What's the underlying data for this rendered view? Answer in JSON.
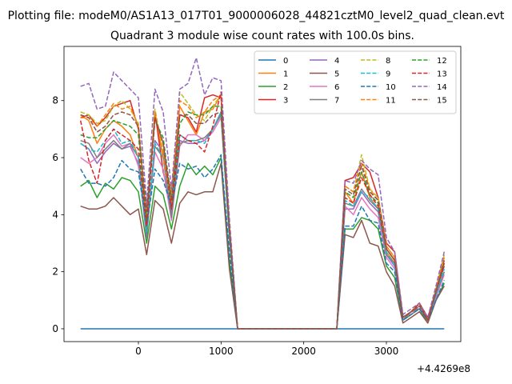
{
  "chart_data": {
    "type": "line",
    "title_line1": "Plotting file: modeM0/AS1A13_017T01_9000006028_44821cztM0_level2_quad_clean.evt",
    "title_line2": "Quadrant 3 module wise count rates with 100.0s bins.",
    "xlabel": "",
    "ylabel": "",
    "x_offset_label": "+4.4269e8",
    "xlim": [
      -900,
      3900
    ],
    "ylim": [
      -0.45,
      9.9
    ],
    "x_ticks": [
      0,
      1000,
      2000,
      3000
    ],
    "x_tick_labels": [
      "0",
      "1000",
      "2000",
      "3000"
    ],
    "y_ticks": [
      0,
      2,
      4,
      6,
      8
    ],
    "y_tick_labels": [
      "0",
      "2",
      "4",
      "6",
      "8"
    ],
    "grid": false,
    "legend": {
      "placement": "top-right",
      "columns": 4
    },
    "x": [
      -700,
      -600,
      -500,
      -400,
      -300,
      -200,
      -100,
      0,
      100,
      200,
      300,
      400,
      500,
      600,
      700,
      800,
      900,
      1000,
      1100,
      1200,
      1300,
      1400,
      1500,
      1600,
      1700,
      1800,
      1900,
      2000,
      2100,
      2200,
      2300,
      2400,
      2500,
      2600,
      2700,
      2800,
      2900,
      3000,
      3100,
      3200,
      3300,
      3400,
      3500,
      3600,
      3700
    ],
    "series": [
      {
        "name": "0",
        "color": "#1f77b4",
        "dash": "solid",
        "values": [
          0,
          0,
          0,
          0,
          0,
          0,
          0,
          0,
          0,
          0,
          0,
          0,
          0,
          0,
          0,
          0,
          0,
          0,
          0,
          0,
          0,
          0,
          0,
          0,
          0,
          0,
          0,
          0,
          0,
          0,
          0,
          0,
          0,
          0,
          0,
          0,
          0,
          0,
          0,
          0,
          0,
          0,
          0,
          0,
          0
        ]
      },
      {
        "name": "1",
        "color": "#ff7f0e",
        "dash": "solid",
        "values": [
          7.5,
          7.3,
          6.5,
          7.0,
          7.3,
          7.1,
          6.8,
          6.0,
          4.0,
          7.5,
          6.0,
          4.8,
          7.8,
          7.3,
          6.8,
          7.6,
          7.7,
          8.2,
          3.7,
          0,
          0,
          0,
          0,
          0,
          0,
          0,
          0,
          0,
          0,
          0,
          0,
          0,
          4.8,
          4.4,
          5.5,
          4.6,
          4.2,
          2.7,
          2.3,
          0.3,
          0.6,
          0.8,
          0.3,
          1.4,
          2.4
        ]
      },
      {
        "name": "2",
        "color": "#2ca02c",
        "dash": "solid",
        "values": [
          5.0,
          5.2,
          4.6,
          5.1,
          4.9,
          5.3,
          5.2,
          4.8,
          3.0,
          5.0,
          4.7,
          3.5,
          5.0,
          5.8,
          5.4,
          5.7,
          5.4,
          6.0,
          2.4,
          0,
          0,
          0,
          0,
          0,
          0,
          0,
          0,
          0,
          0,
          0,
          0,
          0,
          3.5,
          3.5,
          3.9,
          3.8,
          3.5,
          2.2,
          1.8,
          0.3,
          0.5,
          0.7,
          0.2,
          1.0,
          1.6
        ]
      },
      {
        "name": "3",
        "color": "#d62728",
        "dash": "solid",
        "values": [
          7.4,
          7.5,
          7.1,
          7.4,
          7.8,
          7.9,
          8.0,
          7.0,
          3.8,
          7.6,
          5.5,
          4.3,
          7.5,
          7.4,
          6.9,
          8.1,
          8.2,
          8.1,
          3.5,
          0,
          0,
          0,
          0,
          0,
          0,
          0,
          0,
          0,
          0,
          0,
          0,
          0,
          5.2,
          5.3,
          5.8,
          5.5,
          4.6,
          3.0,
          2.7,
          0.4,
          0.6,
          0.9,
          0.4,
          1.3,
          2.2
        ]
      },
      {
        "name": "4",
        "color": "#9467bd",
        "dash": "solid",
        "values": [
          6.5,
          6.3,
          5.8,
          6.2,
          6.5,
          6.3,
          6.4,
          5.8,
          3.2,
          6.6,
          6.2,
          4.0,
          6.6,
          6.5,
          6.5,
          6.6,
          7.0,
          7.6,
          3.2,
          0,
          0,
          0,
          0,
          0,
          0,
          0,
          0,
          0,
          0,
          0,
          0,
          0,
          4.2,
          4.2,
          4.8,
          4.4,
          4.1,
          2.6,
          2.2,
          0.3,
          0.6,
          0.7,
          0.3,
          1.2,
          2.0
        ]
      },
      {
        "name": "5",
        "color": "#8c564b",
        "dash": "solid",
        "values": [
          4.3,
          4.2,
          4.2,
          4.3,
          4.6,
          4.3,
          4.0,
          4.2,
          2.6,
          4.5,
          4.2,
          3.0,
          4.4,
          4.8,
          4.7,
          4.8,
          4.8,
          5.8,
          2.1,
          0,
          0,
          0,
          0,
          0,
          0,
          0,
          0,
          0,
          0,
          0,
          0,
          0,
          3.3,
          3.2,
          3.8,
          3.0,
          2.9,
          2.0,
          1.5,
          0.2,
          0.4,
          0.6,
          0.2,
          1.0,
          1.5
        ]
      },
      {
        "name": "6",
        "color": "#e377c2",
        "dash": "solid",
        "values": [
          6.0,
          5.8,
          6.0,
          6.5,
          6.8,
          6.4,
          6.5,
          5.7,
          3.5,
          6.2,
          5.6,
          3.8,
          6.4,
          6.8,
          6.8,
          6.6,
          6.9,
          7.4,
          3.2,
          0,
          0,
          0,
          0,
          0,
          0,
          0,
          0,
          0,
          0,
          0,
          0,
          0,
          4.3,
          4.0,
          4.6,
          4.2,
          3.9,
          2.5,
          2.1,
          0.4,
          0.5,
          0.8,
          0.3,
          1.1,
          1.9
        ]
      },
      {
        "name": "7",
        "color": "#7f7f7f",
        "dash": "solid",
        "values": [
          6.6,
          6.5,
          6.0,
          6.3,
          6.6,
          6.3,
          6.5,
          6.0,
          3.3,
          6.4,
          6.0,
          3.9,
          6.5,
          6.6,
          6.6,
          6.7,
          7.0,
          7.5,
          3.3,
          0,
          0,
          0,
          0,
          0,
          0,
          0,
          0,
          0,
          0,
          0,
          0,
          0,
          4.4,
          4.3,
          4.9,
          4.5,
          4.2,
          2.6,
          2.3,
          0.3,
          0.6,
          0.7,
          0.3,
          1.2,
          2.0
        ]
      },
      {
        "name": "8",
        "color": "#bcbd22",
        "dash": "dashed",
        "values": [
          7.6,
          7.5,
          7.2,
          7.3,
          7.8,
          8.0,
          7.7,
          7.2,
          4.0,
          7.7,
          6.2,
          4.6,
          8.3,
          7.9,
          7.5,
          7.3,
          7.8,
          8.2,
          3.7,
          0,
          0,
          0,
          0,
          0,
          0,
          0,
          0,
          0,
          0,
          0,
          0,
          0,
          5.0,
          4.8,
          6.1,
          4.9,
          4.6,
          2.9,
          2.5,
          0.4,
          0.6,
          0.9,
          0.3,
          1.4,
          2.6
        ]
      },
      {
        "name": "9",
        "color": "#17becf",
        "dash": "dashed",
        "values": [
          6.5,
          6.3,
          6.2,
          6.6,
          7.0,
          6.5,
          6.6,
          6.0,
          3.4,
          6.5,
          6.0,
          4.2,
          6.8,
          6.6,
          6.6,
          6.5,
          7.0,
          7.6,
          3.2,
          0,
          0,
          0,
          0,
          0,
          0,
          0,
          0,
          0,
          0,
          0,
          0,
          0,
          4.5,
          4.3,
          4.8,
          4.6,
          4.2,
          2.7,
          2.2,
          0.4,
          0.6,
          0.8,
          0.3,
          1.2,
          2.1
        ]
      },
      {
        "name": "10",
        "color": "#1f77b4",
        "dash": "dashed",
        "values": [
          5.6,
          5.1,
          5.1,
          5.0,
          5.3,
          5.9,
          5.6,
          5.5,
          3.6,
          5.6,
          5.2,
          4.3,
          5.8,
          5.6,
          5.7,
          5.3,
          5.6,
          6.1,
          2.7,
          0,
          0,
          0,
          0,
          0,
          0,
          0,
          0,
          0,
          0,
          0,
          0,
          0,
          3.6,
          3.6,
          4.3,
          3.8,
          3.7,
          2.3,
          2.0,
          0.3,
          0.5,
          0.7,
          0.3,
          1.0,
          1.7
        ]
      },
      {
        "name": "11",
        "color": "#ff7f0e",
        "dash": "dashed",
        "values": [
          7.4,
          7.4,
          7.1,
          7.5,
          7.9,
          7.7,
          7.8,
          7.1,
          4.0,
          7.6,
          6.0,
          4.4,
          8.0,
          7.8,
          7.4,
          7.6,
          8.0,
          8.2,
          3.7,
          0,
          0,
          0,
          0,
          0,
          0,
          0,
          0,
          0,
          0,
          0,
          0,
          0,
          5.0,
          4.8,
          5.8,
          4.9,
          4.5,
          2.9,
          2.5,
          0.4,
          0.6,
          0.9,
          0.3,
          1.4,
          2.5
        ]
      },
      {
        "name": "12",
        "color": "#2ca02c",
        "dash": "dashed",
        "values": [
          6.8,
          6.7,
          6.7,
          7.0,
          7.3,
          7.2,
          7.1,
          6.8,
          3.8,
          7.3,
          6.7,
          4.5,
          7.2,
          7.6,
          7.5,
          7.5,
          7.8,
          7.8,
          3.5,
          0,
          0,
          0,
          0,
          0,
          0,
          0,
          0,
          0,
          0,
          0,
          0,
          0,
          4.8,
          4.6,
          5.5,
          4.7,
          4.4,
          2.8,
          2.4,
          0.4,
          0.6,
          0.8,
          0.3,
          1.3,
          2.3
        ]
      },
      {
        "name": "13",
        "color": "#d62728",
        "dash": "dashed",
        "values": [
          7.3,
          5.9,
          5.1,
          6.6,
          7.0,
          6.8,
          6.6,
          6.3,
          3.6,
          7.4,
          6.5,
          4.2,
          6.8,
          6.6,
          6.5,
          6.2,
          7.1,
          8.3,
          3.4,
          0,
          0,
          0,
          0,
          0,
          0,
          0,
          0,
          0,
          0,
          0,
          0,
          0,
          4.6,
          4.4,
          5.3,
          4.7,
          4.3,
          2.8,
          2.4,
          0.4,
          0.6,
          0.9,
          0.3,
          1.3,
          2.3
        ]
      },
      {
        "name": "14",
        "color": "#9467bd",
        "dash": "dashed",
        "values": [
          8.5,
          8.6,
          7.7,
          7.8,
          9.0,
          8.7,
          8.4,
          8.1,
          4.4,
          8.4,
          7.6,
          4.9,
          8.4,
          8.6,
          9.5,
          8.2,
          8.8,
          8.7,
          3.9,
          0,
          0,
          0,
          0,
          0,
          0,
          0,
          0,
          0,
          0,
          0,
          0,
          0,
          5.2,
          5.1,
          5.9,
          5.6,
          5.4,
          3.2,
          2.7,
          0.5,
          0.7,
          0.9,
          0.4,
          1.5,
          2.7
        ]
      },
      {
        "name": "15",
        "color": "#8c564b",
        "dash": "dashed",
        "values": [
          7.5,
          7.4,
          6.9,
          7.1,
          7.5,
          7.6,
          7.5,
          7.1,
          4.1,
          7.4,
          6.5,
          4.5,
          7.5,
          7.5,
          7.2,
          7.2,
          7.5,
          7.6,
          3.5,
          0,
          0,
          0,
          0,
          0,
          0,
          0,
          0,
          0,
          0,
          0,
          0,
          0,
          4.9,
          4.7,
          5.7,
          4.8,
          4.5,
          2.8,
          2.4,
          0.4,
          0.6,
          0.8,
          0.3,
          1.3,
          2.4
        ]
      }
    ]
  }
}
